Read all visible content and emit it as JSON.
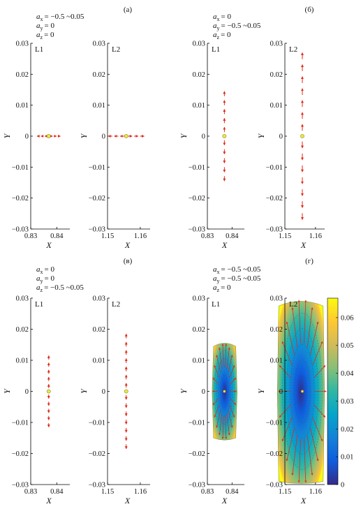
{
  "colors": {
    "arrow": "#e02a1a",
    "dot_fill": "#e8e84a",
    "dot_stroke": "#8a8a20",
    "axis": "#000000",
    "colorbar": [
      "#352a87",
      "#0f5cdd",
      "#1481d6",
      "#06a4ca",
      "#2eb7a4",
      "#87bf77",
      "#d1bb59",
      "#fec832",
      "#f9fb0e"
    ]
  },
  "panels": [
    {
      "letter": "(а)",
      "conditions": [
        {
          "sym": "a",
          "sub": "x",
          "val": "= −0.5 ~0.05"
        },
        {
          "sym": "a",
          "sub": "y",
          "val": "= 0"
        },
        {
          "sym": "a",
          "sub": "z",
          "val": "= 0"
        }
      ]
    },
    {
      "letter": "(б)",
      "conditions": [
        {
          "sym": "a",
          "sub": "x",
          "val": "= 0"
        },
        {
          "sym": "a",
          "sub": "y",
          "val": "= −0.5 ~0.05"
        },
        {
          "sym": "a",
          "sub": "z",
          "val": "= 0"
        }
      ]
    },
    {
      "letter": "(в)",
      "conditions": [
        {
          "sym": "a",
          "sub": "x",
          "val": "= 0"
        },
        {
          "sym": "a",
          "sub": "y",
          "val": "= 0"
        },
        {
          "sym": "a",
          "sub": "z",
          "val": "= −0.5 ~0.05"
        }
      ]
    },
    {
      "letter": "(г)",
      "conditions": [
        {
          "sym": "a",
          "sub": "x",
          "val": "= −0.5 ~0.05"
        },
        {
          "sym": "a",
          "sub": "y",
          "val": "= −0.5 ~0.05"
        },
        {
          "sym": "a",
          "sub": "z",
          "val": "= 0"
        }
      ]
    }
  ],
  "chart_data": [
    {
      "type": "scatter",
      "panel": "(а)",
      "label": "L1",
      "xlabel": "X",
      "ylabel": "Y",
      "xlim": [
        0.83,
        0.845
      ],
      "ylim": [
        -0.03,
        0.03
      ],
      "xticks": [
        "0.83",
        "0.84"
      ],
      "yticks": [
        "0.03",
        "0.02",
        "0.01",
        "0",
        "−0.01",
        "−0.02",
        "−0.03"
      ],
      "point": [
        0.8369,
        0
      ],
      "arrow_extent": {
        "dx": 0.0045,
        "dy": 0
      }
    },
    {
      "type": "scatter",
      "panel": "(а)",
      "label": "L2",
      "xlabel": "X",
      "ylabel": "Y",
      "xlim": [
        1.15,
        1.163
      ],
      "ylim": [
        -0.03,
        0.03
      ],
      "xticks": [
        "1.15",
        "1.16"
      ],
      "yticks": [
        "0.03",
        "0.02",
        "0.01",
        "0",
        "−0.01",
        "−0.02",
        "−0.03"
      ],
      "point": [
        1.1557,
        0
      ],
      "arrow_extent": {
        "dx": 0.0055,
        "dy": 0
      }
    },
    {
      "type": "scatter",
      "panel": "(б)",
      "label": "L1",
      "xlabel": "X",
      "ylabel": "Y",
      "xlim": [
        0.83,
        0.845
      ],
      "ylim": [
        -0.03,
        0.03
      ],
      "xticks": [
        "0.83",
        "0.84"
      ],
      "yticks": [
        "0.03",
        "0.02",
        "0.01",
        "0",
        "−0.01",
        "−0.02",
        "−0.03"
      ],
      "point": [
        0.8369,
        0
      ],
      "arrow_extent": {
        "dx": 0,
        "dy": 0.0145
      }
    },
    {
      "type": "scatter",
      "panel": "(б)",
      "label": "L2",
      "xlabel": "X",
      "ylabel": "Y",
      "xlim": [
        1.15,
        1.163
      ],
      "ylim": [
        -0.03,
        0.03
      ],
      "xticks": [
        "1.15",
        "1.16"
      ],
      "yticks": [
        "0.03",
        "0.02",
        "0.01",
        "0",
        "−0.01",
        "−0.02",
        "−0.03"
      ],
      "point": [
        1.1557,
        0
      ],
      "arrow_extent": {
        "dx": 0,
        "dy": 0.027
      }
    },
    {
      "type": "scatter",
      "panel": "(в)",
      "label": "L1",
      "xlabel": "X",
      "ylabel": "Y",
      "xlim": [
        0.83,
        0.845
      ],
      "ylim": [
        -0.03,
        0.03
      ],
      "xticks": [
        "0.83",
        "0.84"
      ],
      "yticks": [
        "0.03",
        "0.02",
        "0.01",
        "0",
        "−0.01",
        "−0.02",
        "−0.03"
      ],
      "point": [
        0.8369,
        0
      ],
      "arrow_extent": {
        "dx": 0,
        "dy": 0.0115
      }
    },
    {
      "type": "scatter",
      "panel": "(в)",
      "label": "L2",
      "xlabel": "X",
      "ylabel": "Y",
      "xlim": [
        1.15,
        1.163
      ],
      "ylim": [
        -0.03,
        0.03
      ],
      "xticks": [
        "1.15",
        "1.16"
      ],
      "yticks": [
        "0.03",
        "0.02",
        "0.01",
        "0",
        "−0.01",
        "−0.02",
        "−0.03"
      ],
      "point": [
        1.1557,
        0
      ],
      "arrow_extent": {
        "dx": 0,
        "dy": 0.0185
      }
    },
    {
      "type": "heatmap",
      "panel": "(г)",
      "label": "L1",
      "xlabel": "X",
      "ylabel": "Y",
      "xlim": [
        0.83,
        0.845
      ],
      "ylim": [
        -0.03,
        0.03
      ],
      "xticks": [
        "0.83",
        "0.84"
      ],
      "yticks": [
        "0.03",
        "0.02",
        "0.01",
        "0",
        "−0.01",
        "−0.02",
        "−0.03"
      ],
      "point": [
        0.8369,
        0
      ],
      "region": {
        "x_min": 0.8325,
        "x_max": 0.8415,
        "y_min": -0.015,
        "y_max": 0.0145,
        "top_bulge": 0.002
      }
    },
    {
      "type": "heatmap",
      "panel": "(г)",
      "label": "L2",
      "xlabel": "X",
      "ylabel": "Y",
      "xlim": [
        1.15,
        1.163
      ],
      "ylim": [
        -0.03,
        0.03
      ],
      "xticks": [
        "1.15",
        "1.16"
      ],
      "yticks": [
        "0.03",
        "0.02",
        "0.01",
        "0",
        "−0.01",
        "−0.02",
        "−0.03"
      ],
      "point": [
        1.1557,
        0
      ],
      "region": {
        "x_min": 1.148,
        "x_max": 1.1625,
        "y_min": -0.029,
        "y_max": 0.0275,
        "top_bulge": 0.003
      },
      "colorbar": {
        "ticks": [
          "0.06",
          "0.05",
          "0.04",
          "0.03",
          "0.02",
          "0.01",
          "0"
        ],
        "min": 0,
        "max": 0.067
      }
    }
  ]
}
